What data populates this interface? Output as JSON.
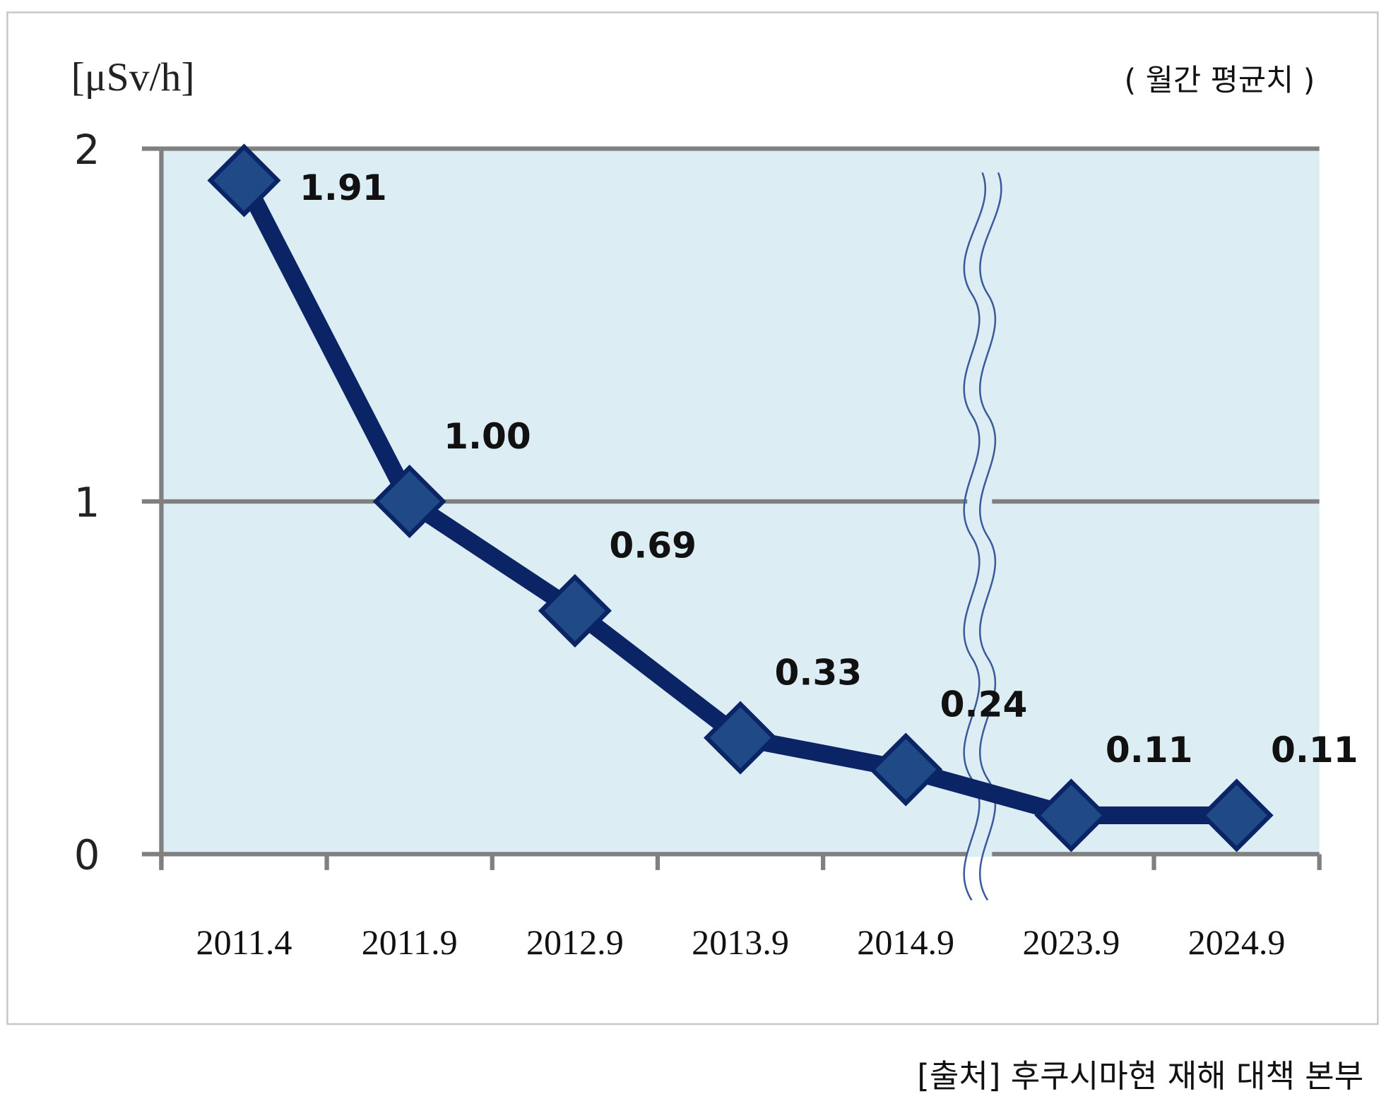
{
  "chart_data": {
    "type": "line",
    "title": "",
    "ylabel": "[μSv/h]",
    "subtitle": "( 월간 평균치 )",
    "source": "[출처] 후쿠시마현 재해 대책 본부",
    "categories": [
      "2011.4",
      "2011.9",
      "2012.9",
      "2013.9",
      "2014.9",
      "2023.9",
      "2024.9"
    ],
    "series": [
      {
        "name": "월간 평균치",
        "values": [
          1.91,
          1.0,
          0.69,
          0.33,
          0.24,
          0.11,
          0.11
        ],
        "labels": [
          "1.91",
          "1.00",
          "0.69",
          "0.33",
          "0.24",
          "0.11",
          "0.11"
        ]
      }
    ],
    "ylim": [
      0,
      2
    ],
    "yticks": [
      "0",
      "1",
      "2"
    ],
    "axis_break_between": [
      "2014.9",
      "2023.9"
    ],
    "grid": true,
    "colors": {
      "line": "#0a2466",
      "marker": "#1f4a85",
      "plot_bg": "#dcedf4",
      "grid": "#808080"
    }
  }
}
